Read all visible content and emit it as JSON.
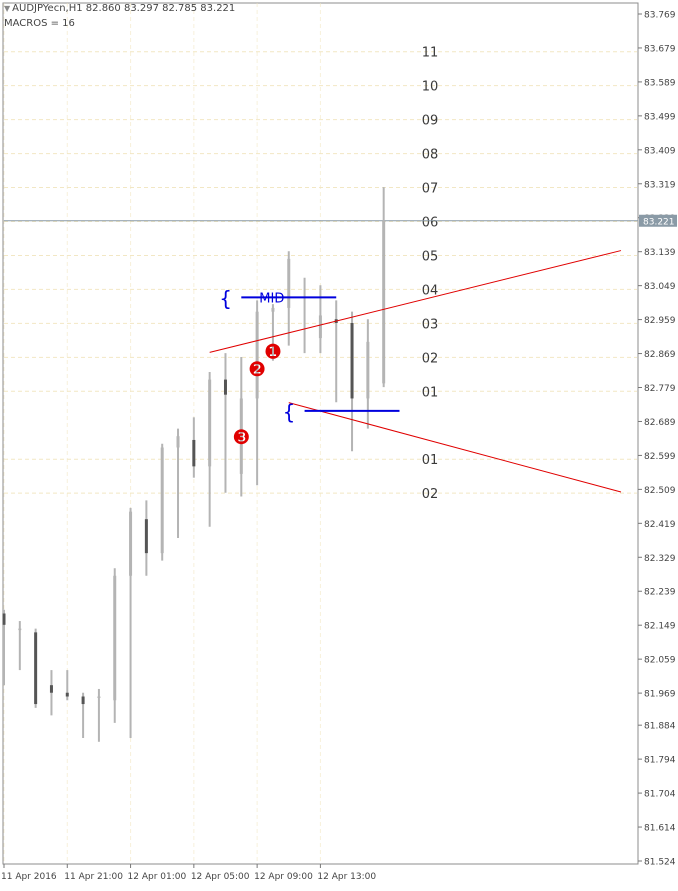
{
  "header": {
    "symbol_line": "AUDJPYecn,H1  82.860 83.297 82.785 83.221",
    "macros_line": "MACROS = 16"
  },
  "colors": {
    "candle_wick": "#b4b4b4",
    "candle_body": "#555555",
    "grid": "#f2e7c4",
    "trendline": "#e00000",
    "level_line": "#0000dd",
    "price_line": "#8a9aa6",
    "marker_fill": "#e00000",
    "level_text": "#3a3a3a"
  },
  "chart_data": {
    "type": "candlestick",
    "symbol": "AUDJPYecn",
    "timeframe": "H1",
    "ohlc_header": {
      "open": 82.86,
      "high": 83.297,
      "low": 82.785,
      "close": 83.221
    },
    "current_price": "83.221",
    "y_axis": {
      "range": [
        81.524,
        83.769
      ],
      "ticks": [
        "83.769",
        "83.679",
        "83.589",
        "83.499",
        "83.409",
        "83.319",
        "83.229",
        "83.139",
        "83.049",
        "82.959",
        "82.869",
        "82.779",
        "82.689",
        "82.599",
        "82.509",
        "82.419",
        "82.329",
        "82.239",
        "82.149",
        "82.059",
        "81.969",
        "81.884",
        "81.794",
        "81.704",
        "81.614",
        "81.524"
      ]
    },
    "x_axis": {
      "ticks": [
        {
          "label": "11 Apr 2016",
          "bar": 0
        },
        {
          "label": "11 Apr 21:00",
          "bar": 4
        },
        {
          "label": "12 Apr 01:00",
          "bar": 8
        },
        {
          "label": "12 Apr 05:00",
          "bar": 12
        },
        {
          "label": "12 Apr 09:00",
          "bar": 16
        },
        {
          "label": "12 Apr 13:00",
          "bar": 20
        }
      ]
    },
    "bars": [
      {
        "open": 82.18,
        "high": 82.19,
        "low": 81.99,
        "close": 82.15
      },
      {
        "open": 82.14,
        "high": 82.16,
        "low": 82.03,
        "close": 82.14
      },
      {
        "open": 82.13,
        "high": 82.14,
        "low": 81.93,
        "close": 81.94
      },
      {
        "open": 81.99,
        "high": 82.03,
        "low": 81.91,
        "close": 81.97
      },
      {
        "open": 81.97,
        "high": 82.03,
        "low": 81.95,
        "close": 81.96
      },
      {
        "open": 81.96,
        "high": 81.97,
        "low": 81.85,
        "close": 81.94
      },
      {
        "open": 81.96,
        "high": 81.98,
        "low": 81.84,
        "close": 81.96
      },
      {
        "open": 81.95,
        "high": 82.3,
        "low": 81.89,
        "close": 82.28
      },
      {
        "open": 82.28,
        "high": 82.46,
        "low": 81.85,
        "close": 82.45
      },
      {
        "open": 82.43,
        "high": 82.48,
        "low": 82.28,
        "close": 82.34
      },
      {
        "open": 82.34,
        "high": 82.63,
        "low": 82.32,
        "close": 82.62
      },
      {
        "open": 82.62,
        "high": 82.67,
        "low": 82.38,
        "close": 82.65
      },
      {
        "open": 82.64,
        "high": 82.7,
        "low": 82.54,
        "close": 82.57
      },
      {
        "open": 82.57,
        "high": 82.82,
        "low": 82.41,
        "close": 82.8
      },
      {
        "open": 82.8,
        "high": 82.87,
        "low": 82.5,
        "close": 82.76
      },
      {
        "open": 82.55,
        "high": 82.86,
        "low": 82.49,
        "close": 82.75
      },
      {
        "open": 82.75,
        "high": 83.01,
        "low": 82.52,
        "close": 82.98
      },
      {
        "open": 82.98,
        "high": 83.0,
        "low": 82.85,
        "close": 82.99
      },
      {
        "open": 82.99,
        "high": 83.14,
        "low": 82.89,
        "close": 83.12
      },
      {
        "open": 83.02,
        "high": 83.07,
        "low": 82.87,
        "close": 83.02
      },
      {
        "open": 82.91,
        "high": 83.05,
        "low": 82.87,
        "close": 82.97
      },
      {
        "open": 82.96,
        "high": 83.01,
        "low": 82.74,
        "close": 82.95
      },
      {
        "open": 82.95,
        "high": 82.98,
        "low": 82.61,
        "close": 82.75
      },
      {
        "open": 82.75,
        "high": 82.96,
        "low": 82.67,
        "close": 82.9
      },
      {
        "open": 82.79,
        "high": 83.31,
        "low": 82.78,
        "close": 83.22
      }
    ],
    "level_labels": [
      {
        "text": "11",
        "price": 83.669
      },
      {
        "text": "10",
        "price": 83.579
      },
      {
        "text": "09",
        "price": 83.489
      },
      {
        "text": "08",
        "price": 83.399
      },
      {
        "text": "07",
        "price": 83.309
      },
      {
        "text": "06",
        "price": 83.219
      },
      {
        "text": "05",
        "price": 83.129
      },
      {
        "text": "04",
        "price": 83.039
      },
      {
        "text": "03",
        "price": 82.949
      },
      {
        "text": "02",
        "price": 82.859
      },
      {
        "text": "01",
        "price": 82.769
      },
      {
        "text": "01",
        "price": 82.589
      },
      {
        "text": "02",
        "price": 82.499
      }
    ],
    "trendlines": [
      {
        "from": {
          "bar": 13,
          "price": 82.872
        },
        "to": {
          "bar": 39,
          "price": 83.142
        }
      },
      {
        "from": {
          "bar": 18,
          "price": 82.739
        },
        "to": {
          "bar": 39,
          "price": 82.502
        }
      }
    ],
    "level_lines": [
      {
        "label": "MID",
        "brace": "{",
        "bar_from": 15,
        "bar_to": 21,
        "price": 83.018
      },
      {
        "label": "",
        "brace": "{",
        "bar_from": 19,
        "bar_to": 25,
        "price": 82.717
      }
    ],
    "markers": [
      {
        "text": "❶",
        "bar": 17,
        "price": 82.874
      },
      {
        "text": "❷",
        "bar": 16,
        "price": 82.828
      },
      {
        "text": "❸",
        "bar": 15,
        "price": 82.648
      }
    ]
  }
}
